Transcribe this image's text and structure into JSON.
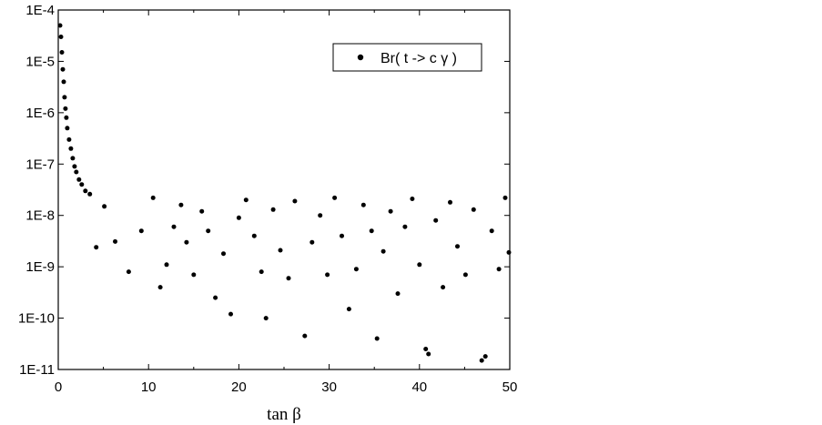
{
  "chart_data": {
    "type": "scatter",
    "xlabel": "tan β",
    "ylabel": "",
    "title": "",
    "xlim": [
      0,
      50
    ],
    "ylim": [
      1e-11,
      0.0001
    ],
    "yscale": "log",
    "x_ticks": [
      0,
      10,
      20,
      30,
      40,
      50
    ],
    "x_tick_labels": [
      "0",
      "10",
      "20",
      "30",
      "40",
      "50"
    ],
    "y_ticks": [
      1e-11,
      1e-10,
      1e-09,
      1e-08,
      1e-07,
      1e-06,
      1e-05,
      0.0001
    ],
    "y_tick_labels": [
      "1E-11",
      "1E-10",
      "1E-9",
      "1E-8",
      "1E-7",
      "1E-6",
      "1E-5",
      "1E-4"
    ],
    "grid": false,
    "legend": {
      "entries": [
        "Br( t -> c γ )"
      ],
      "placement": "top-right"
    },
    "marker_color": "#000000",
    "series": [
      {
        "name": "Br( t -> c γ )",
        "points": [
          [
            0.2,
            5e-05
          ],
          [
            0.3,
            3e-05
          ],
          [
            0.4,
            1.5e-05
          ],
          [
            0.5,
            7e-06
          ],
          [
            0.6,
            4e-06
          ],
          [
            0.7,
            2e-06
          ],
          [
            0.8,
            1.2e-06
          ],
          [
            0.9,
            8e-07
          ],
          [
            1.0,
            5e-07
          ],
          [
            1.2,
            3e-07
          ],
          [
            1.4,
            2e-07
          ],
          [
            1.6,
            1.3e-07
          ],
          [
            1.8,
            9e-08
          ],
          [
            2.0,
            7e-08
          ],
          [
            2.3,
            5e-08
          ],
          [
            2.6,
            4e-08
          ],
          [
            3.0,
            3e-08
          ],
          [
            3.5,
            2.6e-08
          ],
          [
            4.2,
            2.4e-09
          ],
          [
            5.1,
            1.5e-08
          ],
          [
            6.3,
            3.1e-09
          ],
          [
            7.8,
            8e-10
          ],
          [
            9.2,
            5e-09
          ],
          [
            10.5,
            2.2e-08
          ],
          [
            11.3,
            4e-10
          ],
          [
            12.0,
            1.1e-09
          ],
          [
            12.8,
            6e-09
          ],
          [
            13.6,
            1.6e-08
          ],
          [
            14.2,
            3e-09
          ],
          [
            15.0,
            7e-10
          ],
          [
            15.9,
            1.2e-08
          ],
          [
            16.6,
            5e-09
          ],
          [
            17.4,
            2.5e-10
          ],
          [
            18.3,
            1.8e-09
          ],
          [
            19.1,
            1.2e-10
          ],
          [
            20.0,
            9e-09
          ],
          [
            20.8,
            2e-08
          ],
          [
            21.7,
            4e-09
          ],
          [
            22.5,
            8e-10
          ],
          [
            23.0,
            1e-10
          ],
          [
            23.8,
            1.3e-08
          ],
          [
            24.6,
            2.1e-09
          ],
          [
            25.5,
            6e-10
          ],
          [
            26.2,
            1.9e-08
          ],
          [
            27.3,
            4.5e-11
          ],
          [
            28.1,
            3e-09
          ],
          [
            29.0,
            1e-08
          ],
          [
            29.8,
            7e-10
          ],
          [
            30.6,
            2.2e-08
          ],
          [
            31.4,
            4e-09
          ],
          [
            32.2,
            1.5e-10
          ],
          [
            33.0,
            9e-10
          ],
          [
            33.8,
            1.6e-08
          ],
          [
            34.7,
            5e-09
          ],
          [
            35.3,
            4e-11
          ],
          [
            36.0,
            2e-09
          ],
          [
            36.8,
            1.2e-08
          ],
          [
            37.6,
            3e-10
          ],
          [
            38.4,
            6e-09
          ],
          [
            39.2,
            2.1e-08
          ],
          [
            40.0,
            1.1e-09
          ],
          [
            40.7,
            2.5e-11
          ],
          [
            41.0,
            2e-11
          ],
          [
            41.8,
            8e-09
          ],
          [
            42.6,
            4e-10
          ],
          [
            43.4,
            1.8e-08
          ],
          [
            44.2,
            2.5e-09
          ],
          [
            45.1,
            7e-10
          ],
          [
            46.0,
            1.3e-08
          ],
          [
            46.9,
            1.5e-11
          ],
          [
            47.3,
            1.8e-11
          ],
          [
            48.0,
            5e-09
          ],
          [
            48.8,
            9e-10
          ],
          [
            49.5,
            2.2e-08
          ],
          [
            49.9,
            1.9e-09
          ]
        ]
      }
    ]
  }
}
